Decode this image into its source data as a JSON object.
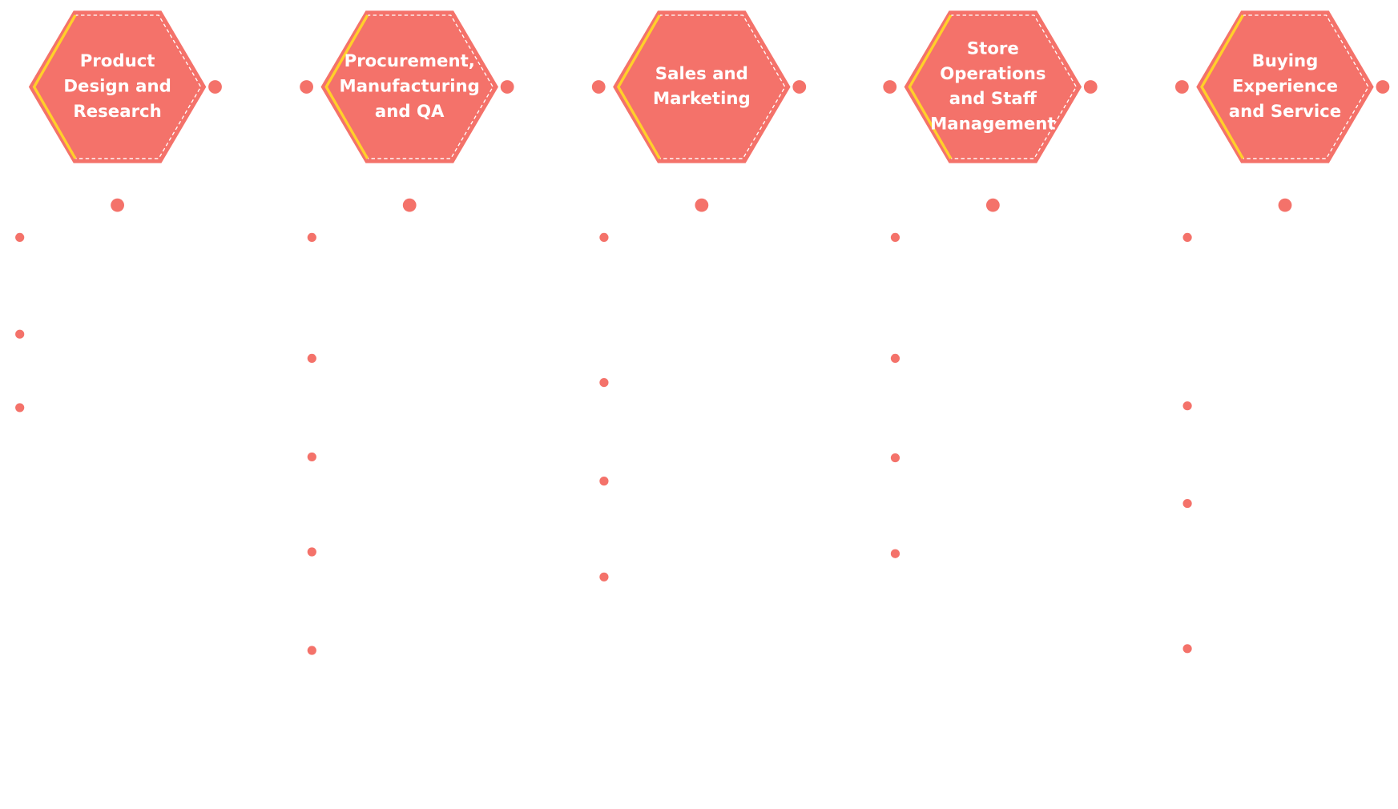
{
  "stages": [
    {
      "label_lines": [
        "Product",
        "Design and",
        "Research"
      ]
    },
    {
      "label_lines": [
        "Procurement,",
        "Manufacturing",
        "and QA"
      ]
    },
    {
      "label_lines": [
        "Sales and",
        "Marketing"
      ]
    },
    {
      "label_lines": [
        "Store",
        "Operations",
        "and Staff",
        "Management"
      ]
    },
    {
      "label_lines": [
        "Buying",
        "Experience",
        "and Service"
      ]
    }
  ]
}
